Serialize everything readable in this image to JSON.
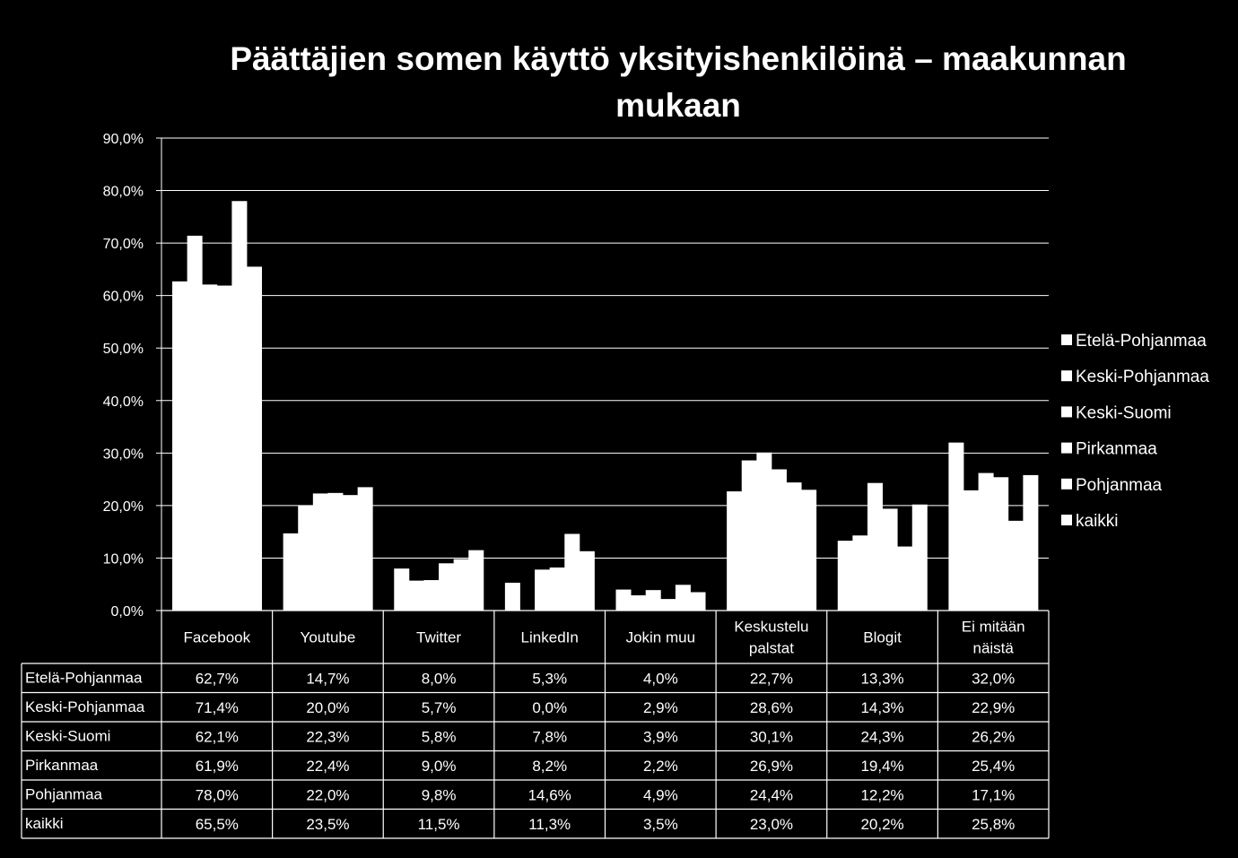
{
  "chart_data": {
    "type": "bar",
    "title_lines": [
      "Päättäjien somen käyttö yksityishenkilöinä – maakunnan",
      "mukaan"
    ],
    "ylim": [
      0,
      90
    ],
    "yticks": [
      "0,0%",
      "10,0%",
      "20,0%",
      "30,0%",
      "40,0%",
      "50,0%",
      "60,0%",
      "70,0%",
      "80,0%",
      "90,0%"
    ],
    "grid": true,
    "legend_position": "right",
    "categories": [
      [
        "Facebook"
      ],
      [
        "Youtube"
      ],
      [
        "Twitter"
      ],
      [
        "LinkedIn"
      ],
      [
        "Jokin muu"
      ],
      [
        "Keskustelu",
        "palstat"
      ],
      [
        "Blogit"
      ],
      [
        "Ei mitään",
        "näistä"
      ]
    ],
    "series": [
      {
        "name": "Etelä-Pohjanmaa",
        "values": [
          62.7,
          14.7,
          8.0,
          5.3,
          4.0,
          22.7,
          13.3,
          32.0
        ],
        "labels": [
          "62,7%",
          "14,7%",
          "8,0%",
          "5,3%",
          "4,0%",
          "22,7%",
          "13,3%",
          "32,0%"
        ]
      },
      {
        "name": "Keski-Pohjanmaa",
        "values": [
          71.4,
          20.0,
          5.7,
          0.0,
          2.9,
          28.6,
          14.3,
          22.9
        ],
        "labels": [
          "71,4%",
          "20,0%",
          "5,7%",
          "0,0%",
          "2,9%",
          "28,6%",
          "14,3%",
          "22,9%"
        ]
      },
      {
        "name": "Keski-Suomi",
        "values": [
          62.1,
          22.3,
          5.8,
          7.8,
          3.9,
          30.1,
          24.3,
          26.2
        ],
        "labels": [
          "62,1%",
          "22,3%",
          "5,8%",
          "7,8%",
          "3,9%",
          "30,1%",
          "24,3%",
          "26,2%"
        ]
      },
      {
        "name": "Pirkanmaa",
        "values": [
          61.9,
          22.4,
          9.0,
          8.2,
          2.2,
          26.9,
          19.4,
          25.4
        ],
        "labels": [
          "61,9%",
          "22,4%",
          "9,0%",
          "8,2%",
          "2,2%",
          "26,9%",
          "19,4%",
          "25,4%"
        ]
      },
      {
        "name": "Pohjanmaa",
        "values": [
          78.0,
          22.0,
          9.8,
          14.6,
          4.9,
          24.4,
          12.2,
          17.1
        ],
        "labels": [
          "78,0%",
          "22,0%",
          "9,8%",
          "14,6%",
          "4,9%",
          "24,4%",
          "12,2%",
          "17,1%"
        ]
      },
      {
        "name": "kaikki",
        "values": [
          65.5,
          23.5,
          11.5,
          11.3,
          3.5,
          23.0,
          20.2,
          25.8
        ],
        "labels": [
          "65,5%",
          "23,5%",
          "11,5%",
          "11,3%",
          "3,5%",
          "23,0%",
          "20,2%",
          "25,8%"
        ]
      }
    ],
    "colors": {
      "background": "#000000",
      "bars": "#ffffff",
      "text": "#ffffff",
      "grid": "#ffffff"
    }
  }
}
